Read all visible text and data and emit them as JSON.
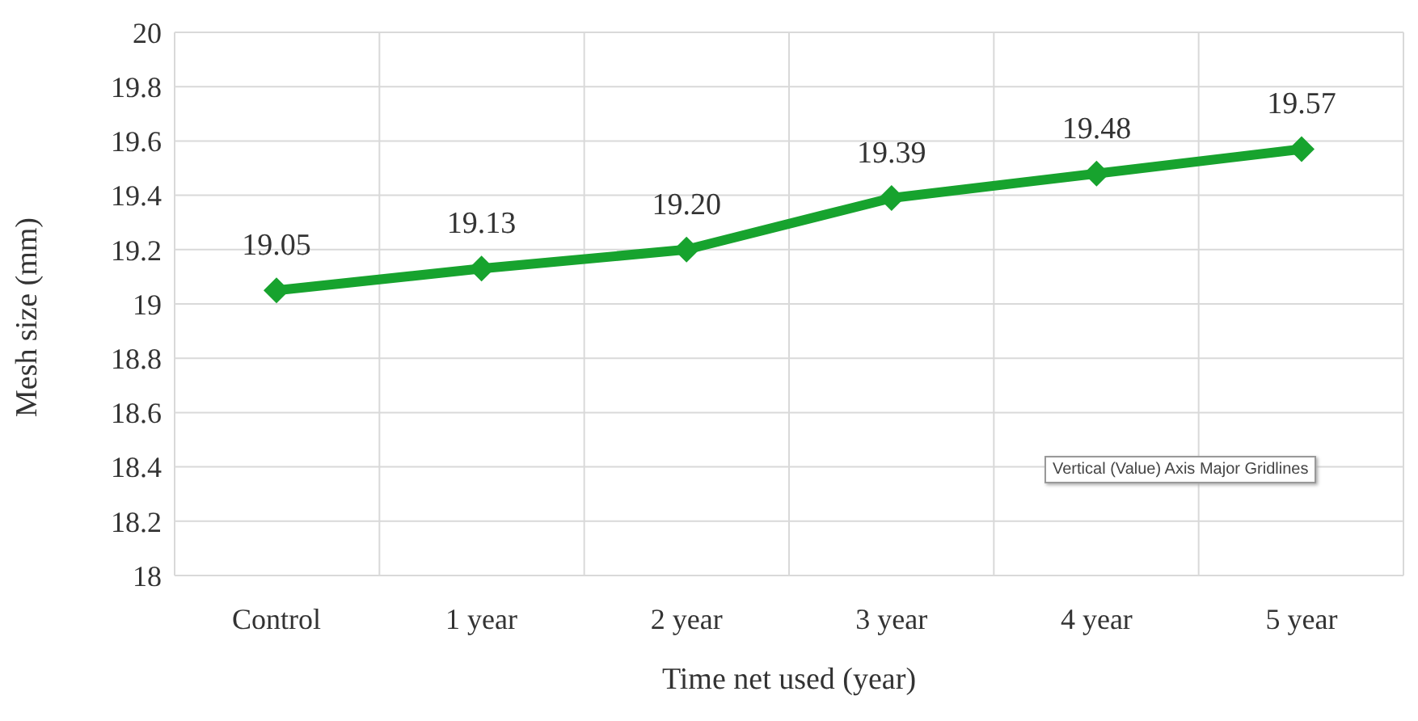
{
  "chart_data": {
    "type": "line",
    "xlabel": "Time net used (year)",
    "ylabel": "Mesh size (mm)",
    "categories": [
      "Control",
      "1 year",
      "2 year",
      "3 year",
      "4 year",
      "5 year"
    ],
    "values": [
      19.05,
      19.13,
      19.2,
      19.39,
      19.48,
      19.57
    ],
    "value_labels": [
      "19.05",
      "19.13",
      "19.20",
      "19.39",
      "19.48",
      "19.57"
    ],
    "color": "#17a32e",
    "marker": "diamond",
    "ylim": [
      18,
      20
    ],
    "yticks": [
      18,
      18.2,
      18.4,
      18.6,
      18.8,
      19,
      19.2,
      19.4,
      19.6,
      19.8,
      20
    ],
    "grid": true,
    "annotations": [
      "Vertical (Value) Axis Major Gridlines"
    ]
  }
}
